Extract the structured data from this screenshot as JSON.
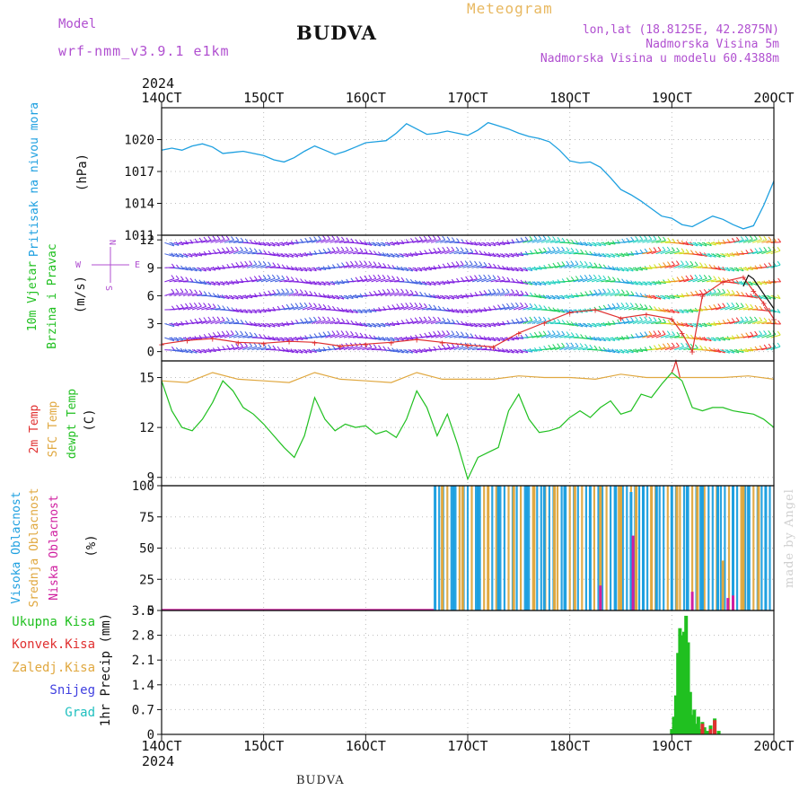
{
  "header": {
    "model_label": "Model",
    "model_name": "wrf-nmm_v3.9.1 e1km",
    "station": "BUDVA",
    "title": "Meteogram",
    "lonlat": "lon,lat (18.8125E, 42.2875N)",
    "elevation": "Nadmorska Visina 5m",
    "model_elevation": "Nadmorska Visina u modelu 60.4388m"
  },
  "footer": {
    "station": "BUDVA",
    "credit": "made by Angel"
  },
  "time_axis": {
    "year": "2024",
    "labels": [
      "14OCT",
      "15OCT",
      "16OCT",
      "17OCT",
      "18OCT",
      "19OCT",
      "20OCT"
    ],
    "range_days": [
      0,
      6
    ]
  },
  "colors": {
    "pressure": "#1ea0e0",
    "t2m": "#e03030",
    "sfc_temp": "#e0a840",
    "dewpt": "#20c020",
    "cloud_high": "#1ea0e0",
    "cloud_mid": "#e0a840",
    "cloud_low": "#d020a0",
    "rain_total": "#20c020",
    "rain_conv": "#e03030",
    "snow": "#4040e0",
    "hail": "#20c0c0",
    "wind_scale": [
      "#8020e0",
      "#4060e0",
      "#20a0e0",
      "#20d0c0",
      "#20d060",
      "#d0e020",
      "#f09020",
      "#f03030"
    ]
  },
  "chart_data": [
    {
      "type": "line",
      "name": "pressure",
      "ylabel": [
        "Pritisak na nivou mora",
        "(hPa)"
      ],
      "ylim": [
        1011,
        1023
      ],
      "yticks": [
        1011,
        1014,
        1017,
        1020
      ],
      "grid": true,
      "series": [
        {
          "x": [
            0,
            0.1,
            0.2,
            0.3,
            0.4,
            0.5,
            0.6,
            0.7,
            0.8,
            0.9,
            1.0,
            1.1,
            1.2,
            1.3,
            1.4,
            1.5,
            1.6,
            1.7,
            1.8,
            1.9,
            2.0,
            2.1,
            2.2,
            2.3,
            2.4,
            2.5,
            2.6,
            2.7,
            2.8,
            2.9,
            3.0,
            3.1,
            3.2,
            3.3,
            3.4,
            3.5,
            3.6,
            3.7,
            3.8,
            3.9,
            4.0,
            4.1,
            4.2,
            4.3,
            4.4,
            4.5,
            4.6,
            4.7,
            4.8,
            4.9,
            5.0,
            5.1,
            5.2,
            5.3,
            5.4,
            5.5,
            5.6,
            5.7,
            5.8,
            5.9,
            6.0
          ],
          "values": [
            1019.0,
            1019.2,
            1019.0,
            1019.4,
            1019.6,
            1019.3,
            1018.7,
            1018.8,
            1018.9,
            1018.7,
            1018.5,
            1018.1,
            1017.9,
            1018.3,
            1018.9,
            1019.4,
            1019.0,
            1018.6,
            1018.9,
            1019.3,
            1019.7,
            1019.8,
            1019.9,
            1020.6,
            1021.5,
            1021.0,
            1020.5,
            1020.6,
            1020.8,
            1020.6,
            1020.4,
            1020.9,
            1021.6,
            1021.3,
            1021.0,
            1020.6,
            1020.3,
            1020.1,
            1019.8,
            1019.0,
            1018.0,
            1017.8,
            1017.9,
            1017.4,
            1016.4,
            1015.3,
            1014.8,
            1014.2,
            1013.5,
            1012.8,
            1012.6,
            1012.0,
            1011.8,
            1012.3,
            1012.8,
            1012.5,
            1012.0,
            1011.6,
            1011.9,
            1013.8,
            1016.1
          ]
        }
      ]
    },
    {
      "type": "line",
      "name": "wind",
      "ylabel": [
        "10m Vjetar",
        "Brzina i Pravac",
        "(m/s)"
      ],
      "compass": {
        "n": "N",
        "w": "W",
        "e": "E",
        "s": "S"
      },
      "ylim": [
        -1,
        12.5
      ],
      "yticks": [
        0,
        3,
        6,
        9,
        12
      ],
      "grid": true,
      "series": [
        {
          "name": "speed",
          "x": [
            0,
            0.25,
            0.5,
            0.75,
            1.0,
            1.25,
            1.5,
            1.75,
            2.0,
            2.25,
            2.5,
            2.75,
            3.0,
            3.25,
            3.5,
            3.75,
            4.0,
            4.25,
            4.5,
            4.75,
            5.0,
            5.1,
            5.2,
            5.3,
            5.5,
            5.7,
            5.8,
            5.9,
            6.0
          ],
          "values": [
            0.8,
            1.2,
            1.4,
            1.0,
            0.9,
            1.1,
            1.0,
            0.6,
            0.8,
            1.0,
            1.3,
            1.0,
            0.7,
            0.5,
            2.0,
            3.1,
            4.2,
            4.5,
            3.6,
            4.0,
            3.5,
            2.0,
            0.0,
            6.0,
            7.5,
            8.0,
            6.5,
            5.2,
            3.5
          ]
        },
        {
          "name": "gust",
          "x": [
            5.7,
            5.75,
            5.8,
            5.85,
            5.9,
            5.95,
            6.0
          ],
          "values": [
            7.0,
            8.2,
            7.8,
            7.0,
            6.2,
            5.4,
            4.6
          ]
        }
      ]
    },
    {
      "type": "line",
      "name": "temperature",
      "ylabel": [
        "2m Temp",
        "SFC Temp",
        "dewpt Temp",
        "(C)"
      ],
      "ylim": [
        8.5,
        16
      ],
      "yticks": [
        9,
        12,
        15
      ],
      "grid": true,
      "series": [
        {
          "name": "SFC Temp",
          "x": [
            0,
            0.25,
            0.5,
            0.75,
            1.0,
            1.25,
            1.5,
            1.75,
            2.0,
            2.25,
            2.5,
            2.75,
            3.0,
            3.25,
            3.5,
            3.75,
            4.0,
            4.25,
            4.5,
            4.75,
            5.0,
            5.25,
            5.5,
            5.75,
            6.0
          ],
          "values": [
            14.8,
            14.7,
            15.3,
            14.9,
            14.8,
            14.7,
            15.3,
            14.9,
            14.8,
            14.7,
            15.3,
            14.9,
            14.9,
            14.9,
            15.1,
            15.0,
            15.0,
            14.9,
            15.2,
            15.0,
            15.0,
            15.0,
            15.0,
            15.1,
            14.9
          ]
        },
        {
          "name": "dewpt Temp",
          "x": [
            0,
            0.1,
            0.2,
            0.3,
            0.4,
            0.5,
            0.6,
            0.7,
            0.8,
            0.9,
            1.0,
            1.1,
            1.2,
            1.3,
            1.4,
            1.5,
            1.6,
            1.7,
            1.8,
            1.9,
            2.0,
            2.1,
            2.2,
            2.3,
            2.4,
            2.5,
            2.6,
            2.7,
            2.8,
            2.9,
            3.0,
            3.1,
            3.2,
            3.3,
            3.4,
            3.5,
            3.6,
            3.7,
            3.8,
            3.9,
            4.0,
            4.1,
            4.2,
            4.3,
            4.4,
            4.5,
            4.6,
            4.7,
            4.8,
            4.9,
            5.0,
            5.1,
            5.2,
            5.3,
            5.4,
            5.5,
            5.6,
            5.7,
            5.8,
            5.9,
            6.0
          ],
          "values": [
            14.8,
            13.0,
            12.0,
            11.8,
            12.5,
            13.5,
            14.8,
            14.2,
            13.2,
            12.8,
            12.2,
            11.5,
            10.8,
            10.2,
            11.5,
            13.8,
            12.5,
            11.8,
            12.2,
            12.0,
            12.1,
            11.6,
            11.8,
            11.4,
            12.5,
            14.2,
            13.2,
            11.5,
            12.8,
            11.0,
            8.9,
            10.2,
            10.5,
            10.8,
            13.0,
            14.0,
            12.5,
            11.7,
            11.8,
            12.0,
            12.6,
            13.0,
            12.6,
            13.2,
            13.6,
            12.8,
            13.0,
            14.0,
            13.8,
            14.6,
            15.3,
            14.8,
            13.2,
            13.0,
            13.2,
            13.2,
            13.0,
            12.9,
            12.8,
            12.5,
            12.0
          ]
        },
        {
          "name": "2m Temp",
          "x": [
            5.0,
            5.02,
            5.04,
            5.06,
            5.08
          ],
          "values": [
            15.3,
            15.6,
            16.0,
            15.5,
            15.0
          ]
        }
      ]
    },
    {
      "type": "bar",
      "name": "cloud",
      "ylabel": [
        "Visoka Oblacnost",
        "Srednja Oblacnost",
        "Niska Oblacnost",
        "(%)"
      ],
      "ylim": [
        0,
        100
      ],
      "yticks": [
        0,
        25,
        50,
        75,
        100
      ],
      "grid": true,
      "series": [
        {
          "name": "Visoka Oblacnost",
          "x": [
            2.68,
            2.86,
            3.1,
            3.3,
            3.58,
            3.75,
            3.95,
            4.2,
            4.45,
            4.6,
            4.72,
            4.85,
            5.0,
            5.15,
            5.3,
            5.45,
            5.6,
            5.75,
            5.92
          ],
          "values": [
            100,
            100,
            100,
            100,
            100,
            100,
            100,
            100,
            100,
            95,
            100,
            100,
            100,
            100,
            100,
            100,
            100,
            100,
            100
          ]
        },
        {
          "name": "Srednja Oblacnost",
          "x": [
            2.75,
            2.95,
            3.2,
            3.45,
            3.65,
            3.85,
            4.05,
            4.3,
            4.5,
            4.65,
            4.8,
            5.05,
            5.25,
            5.5,
            5.7,
            5.85
          ],
          "values": [
            100,
            100,
            100,
            100,
            100,
            100,
            100,
            100,
            100,
            100,
            100,
            100,
            100,
            40,
            100,
            100
          ]
        },
        {
          "name": "Niska Oblacnost",
          "x": [
            4.3,
            4.62,
            5.2,
            5.55,
            5.6
          ],
          "values": [
            20,
            60,
            15,
            10,
            12
          ]
        }
      ]
    },
    {
      "type": "bar",
      "name": "precip",
      "ylabel": [
        "1hr Precip (mm)"
      ],
      "legend": [
        "Ukupna Kisa",
        "Konvek.Kisa",
        "Zaledj.Kisa",
        "Snijeg",
        "Grad"
      ],
      "ylim": [
        0,
        3.5
      ],
      "yticks": [
        0,
        0.7,
        1.4,
        2.1,
        2.8,
        3.5
      ],
      "grid": true,
      "series": [
        {
          "name": "Ukupna Kisa",
          "x": [
            5.0,
            5.02,
            5.04,
            5.06,
            5.08,
            5.1,
            5.12,
            5.14,
            5.16,
            5.18,
            5.2,
            5.22,
            5.24,
            5.26,
            5.28,
            5.3,
            5.32,
            5.35,
            5.38,
            5.42,
            5.46
          ],
          "values": [
            0.15,
            0.5,
            1.1,
            2.3,
            3.0,
            2.8,
            2.9,
            3.35,
            2.6,
            1.2,
            0.55,
            0.7,
            0.3,
            0.5,
            0.15,
            0.35,
            0.2,
            0.1,
            0.25,
            0.45,
            0.1
          ]
        },
        {
          "name": "Konvek.Kisa",
          "x": [
            5.3,
            5.38,
            5.42
          ],
          "values": [
            0.3,
            0.15,
            0.4
          ]
        }
      ]
    }
  ]
}
